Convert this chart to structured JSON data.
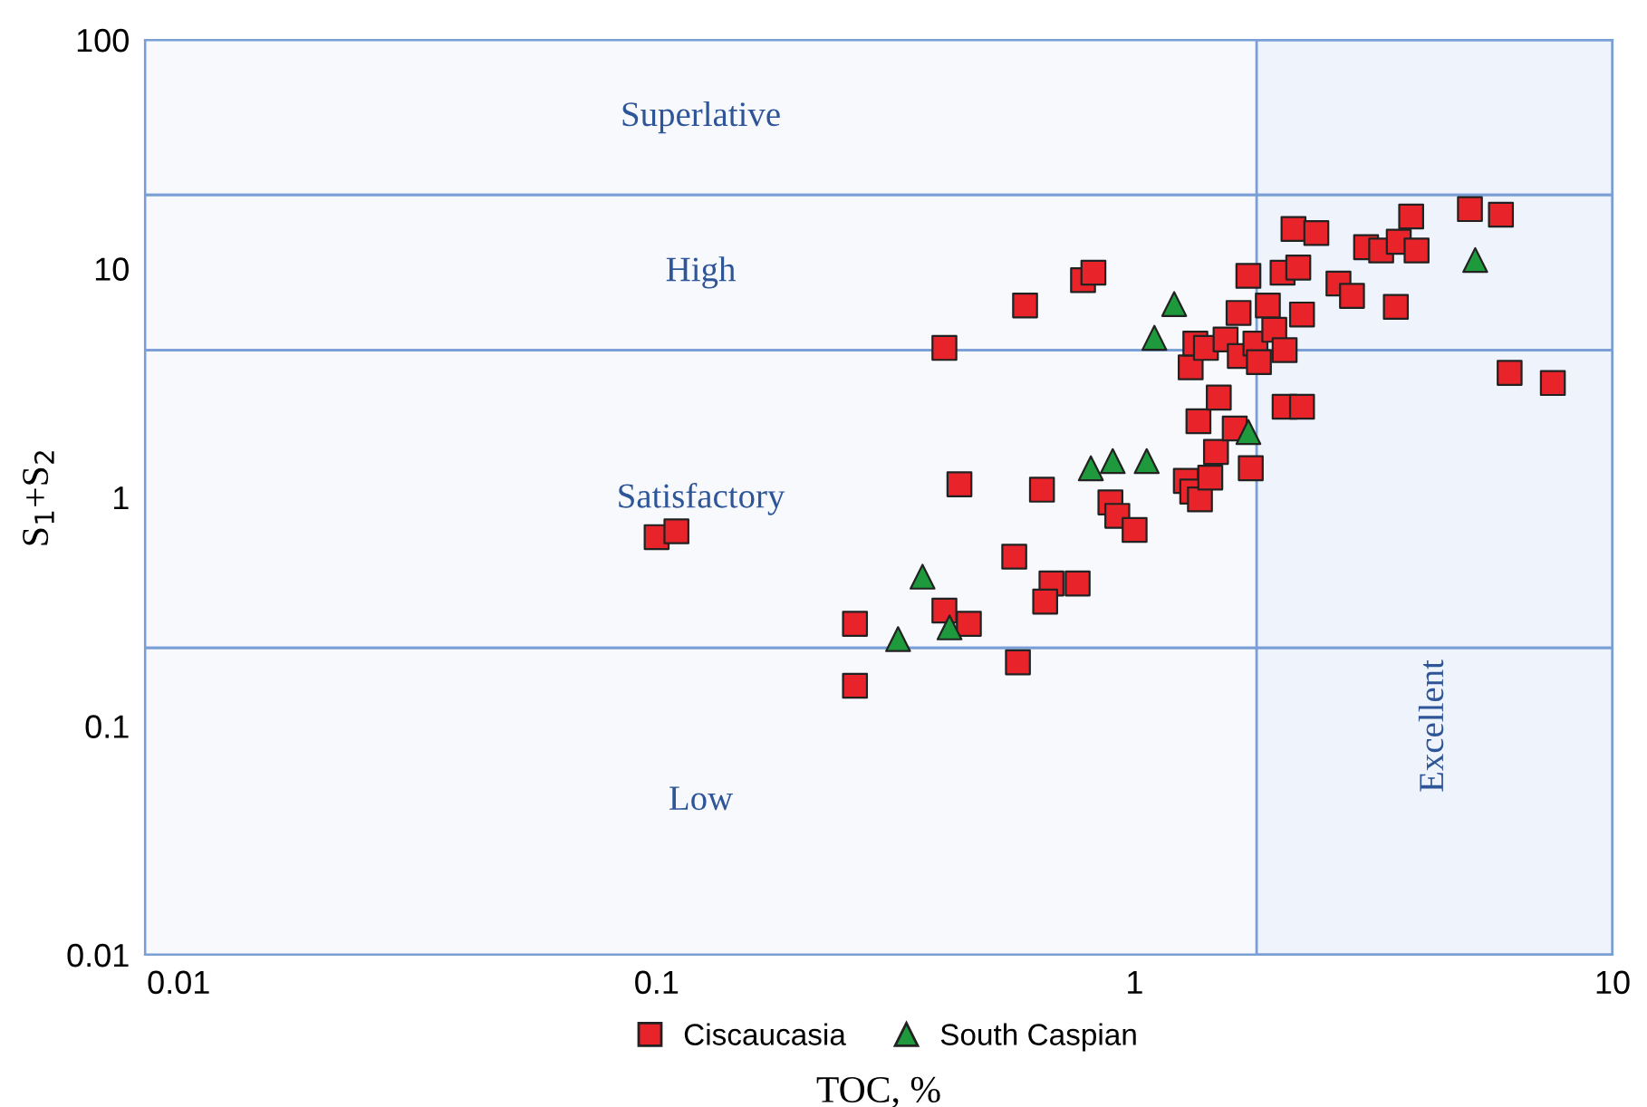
{
  "chart_data": {
    "type": "scatter",
    "xlabel": "TOC, %",
    "ylabel": "S$_{1}$+S$_{2}$",
    "log": "xy",
    "xlim": [
      0.0085,
      10
    ],
    "ylim": [
      0.01,
      100
    ],
    "xticks": [
      0.01,
      0.1,
      1,
      10
    ],
    "yticks": [
      0.01,
      0.1,
      1,
      10,
      100
    ],
    "grid": false,
    "legend": "bottom",
    "bands": [
      {
        "axis": "y",
        "from": 0.01,
        "to": 0.22,
        "label": "Low",
        "color": "#7a9fd6"
      },
      {
        "axis": "y",
        "from": 0.22,
        "to": 4.4,
        "label": "Satisfactory",
        "color": "#7a9fd6"
      },
      {
        "axis": "y",
        "from": 4.4,
        "to": 21,
        "label": "High",
        "color": "#7a9fd6"
      },
      {
        "axis": "y",
        "from": 21,
        "to": 100,
        "label": "Superlative",
        "color": "#7a9fd6"
      },
      {
        "axis": "x",
        "from": 1.8,
        "to": 10,
        "label": "Excellent",
        "color": "#7a9fd6"
      }
    ],
    "series": [
      {
        "name": "Ciscaucasia",
        "color": "#e8242a",
        "marker": "square",
        "x": [
          0.1,
          0.11,
          0.26,
          0.26,
          0.4,
          0.43,
          0.4,
          0.45,
          0.56,
          0.57,
          0.59,
          0.64,
          0.67,
          0.65,
          0.76,
          0.78,
          0.82,
          0.89,
          0.92,
          1.0,
          1.28,
          1.32,
          1.37,
          1.44,
          1.48,
          1.62,
          1.36,
          1.5,
          1.75,
          1.31,
          1.34,
          1.41,
          1.55,
          1.66,
          1.79,
          1.82,
          1.96,
          2.06,
          1.65,
          1.9,
          2.24,
          1.73,
          2.04,
          2.2,
          2.15,
          2.4,
          2.06,
          2.24,
          2.67,
          2.85,
          3.05,
          3.28,
          3.57,
          3.89,
          3.79,
          3.52,
          5.03,
          5.84,
          6.09,
          7.5
        ],
        "values": [
          0.67,
          0.71,
          0.28,
          0.15,
          4.5,
          1.14,
          0.32,
          0.28,
          0.55,
          0.19,
          6.9,
          1.08,
          0.42,
          0.35,
          0.42,
          8.9,
          9.6,
          0.95,
          0.83,
          0.72,
          1.18,
          1.06,
          0.98,
          1.22,
          1.58,
          2.0,
          2.15,
          2.73,
          1.34,
          3.7,
          4.7,
          4.5,
          4.9,
          4.15,
          4.7,
          3.9,
          5.4,
          4.4,
          6.4,
          6.9,
          6.3,
          9.3,
          9.6,
          10.1,
          14.9,
          14.3,
          2.49,
          2.49,
          8.6,
          7.6,
          12.4,
          12.0,
          13.1,
          12.0,
          16.9,
          6.8,
          18.2,
          17.2,
          3.5,
          3.16
        ]
      },
      {
        "name": "South Caspian",
        "color": "#1e9a3c",
        "marker": "triangle",
        "x": [
          0.36,
          0.32,
          0.41,
          0.81,
          0.9,
          1.06,
          1.1,
          1.21,
          1.73,
          5.16
        ],
        "values": [
          0.45,
          0.24,
          0.27,
          1.34,
          1.44,
          1.44,
          4.98,
          7.0,
          1.93,
          10.9
        ]
      }
    ]
  }
}
